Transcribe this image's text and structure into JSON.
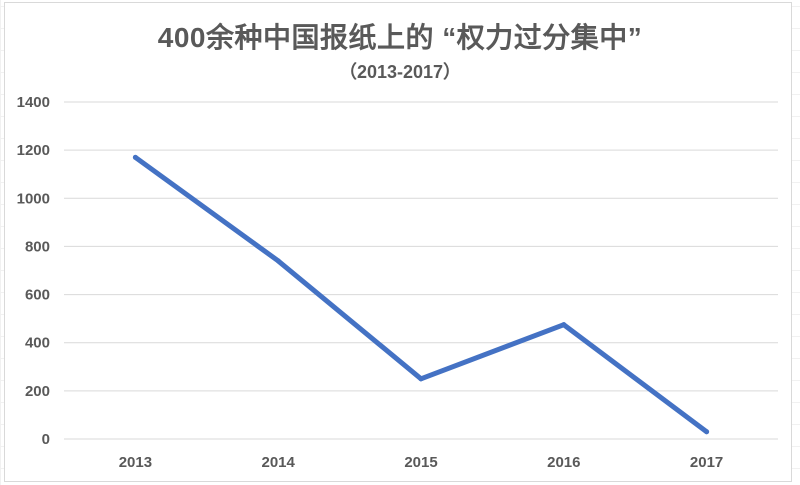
{
  "chart_data": {
    "type": "line",
    "title": "400余种中国报纸上的 “权力过分集中”",
    "subtitle": "（2013-2017）",
    "xlabel": "",
    "ylabel": "",
    "categories": [
      "2013",
      "2014",
      "2015",
      "2016",
      "2017"
    ],
    "series": [
      {
        "values": [
          1170,
          740,
          250,
          475,
          30
        ],
        "color": "#4472c4"
      }
    ],
    "ylim": [
      0,
      1400
    ],
    "yticks": [
      0,
      200,
      400,
      600,
      800,
      1000,
      1200,
      1400
    ],
    "grid": true,
    "legend": "none"
  }
}
